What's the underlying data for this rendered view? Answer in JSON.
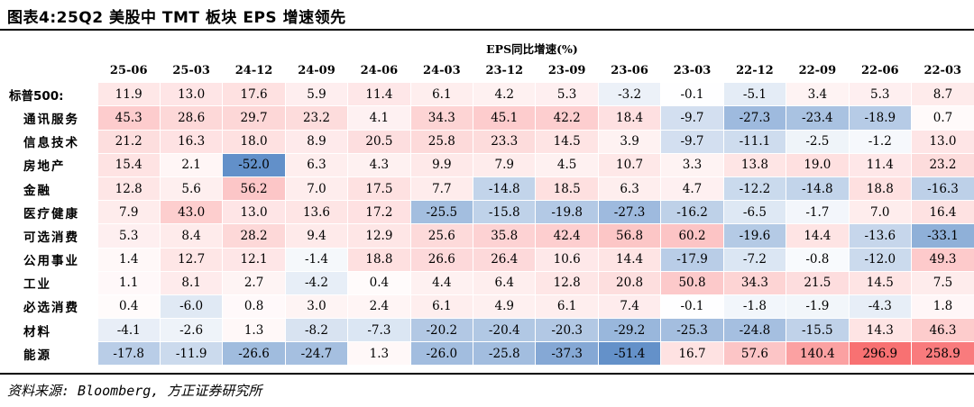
{
  "title": "图表4:25Q2 美股中 TMT 板块 EPS 增速领先",
  "super_header": "EPS同比增速(%)",
  "columns": [
    "25-06",
    "25-03",
    "24-12",
    "24-09",
    "24-06",
    "24-03",
    "23-12",
    "23-09",
    "23-06",
    "23-03",
    "22-12",
    "22-09",
    "22-06",
    "22-03"
  ],
  "rows": [
    {
      "label": "标普500:",
      "indent": false,
      "values": [
        11.9,
        13.0,
        17.6,
        5.9,
        11.4,
        6.1,
        4.2,
        5.3,
        -3.2,
        -0.1,
        -5.1,
        3.4,
        5.3,
        8.7
      ]
    },
    {
      "label": "通讯服务",
      "indent": true,
      "values": [
        45.3,
        28.6,
        29.7,
        23.2,
        4.1,
        34.3,
        45.1,
        42.2,
        18.4,
        -9.7,
        -27.3,
        -23.4,
        -18.9,
        0.7
      ]
    },
    {
      "label": "信息技术",
      "indent": true,
      "values": [
        21.2,
        16.3,
        18.0,
        8.9,
        20.5,
        25.8,
        23.3,
        14.5,
        3.9,
        -9.7,
        -11.1,
        -2.5,
        -1.2,
        13.0
      ]
    },
    {
      "label": "房地产",
      "indent": true,
      "values": [
        15.4,
        2.1,
        -52.0,
        6.3,
        4.3,
        9.9,
        7.9,
        4.5,
        10.7,
        3.3,
        13.8,
        19.0,
        11.4,
        23.2
      ]
    },
    {
      "label": "金融",
      "indent": true,
      "values": [
        12.8,
        5.6,
        56.2,
        7.0,
        17.5,
        7.7,
        -14.8,
        18.5,
        6.3,
        4.7,
        -12.2,
        -14.8,
        18.8,
        -16.3
      ]
    },
    {
      "label": "医疗健康",
      "indent": true,
      "values": [
        7.9,
        43.0,
        13.0,
        13.6,
        17.2,
        -25.5,
        -15.8,
        -19.8,
        -27.3,
        -16.2,
        -6.5,
        -1.7,
        7.0,
        16.4
      ]
    },
    {
      "label": "可选消费",
      "indent": true,
      "values": [
        5.3,
        8.4,
        28.2,
        9.4,
        12.9,
        25.6,
        35.8,
        42.4,
        56.8,
        60.2,
        -19.6,
        14.4,
        -13.6,
        -33.1
      ]
    },
    {
      "label": "公用事业",
      "indent": true,
      "values": [
        1.4,
        12.7,
        12.1,
        -1.4,
        18.8,
        26.6,
        26.4,
        10.6,
        14.4,
        -17.9,
        -7.2,
        -0.8,
        -12.0,
        49.3
      ]
    },
    {
      "label": "工业",
      "indent": true,
      "values": [
        1.1,
        8.1,
        2.7,
        -4.2,
        0.4,
        4.4,
        6.4,
        12.8,
        20.8,
        50.8,
        34.3,
        21.5,
        14.5,
        7.5
      ]
    },
    {
      "label": "必选消费",
      "indent": true,
      "values": [
        0.4,
        -6.0,
        0.8,
        3.0,
        2.4,
        6.1,
        4.9,
        6.1,
        7.4,
        -0.1,
        -1.8,
        -1.9,
        -4.3,
        1.8
      ]
    },
    {
      "label": "材料",
      "indent": true,
      "values": [
        -4.1,
        -2.6,
        1.3,
        -8.2,
        -7.3,
        -20.2,
        -20.4,
        -20.3,
        -29.2,
        -25.3,
        -24.8,
        -15.5,
        14.3,
        46.3
      ]
    },
    {
      "label": "能源",
      "indent": true,
      "values": [
        -17.8,
        -11.9,
        -26.6,
        -24.7,
        1.3,
        -26.0,
        -25.8,
        -37.3,
        -51.4,
        16.7,
        57.6,
        140.4,
        296.9,
        258.9
      ]
    }
  ],
  "source": "资料来源: Bloomberg, 方正证券研究所",
  "colors": {
    "positive": "#f8696b",
    "negative": "#5a8ac6",
    "neutral": "#ffffff"
  }
}
